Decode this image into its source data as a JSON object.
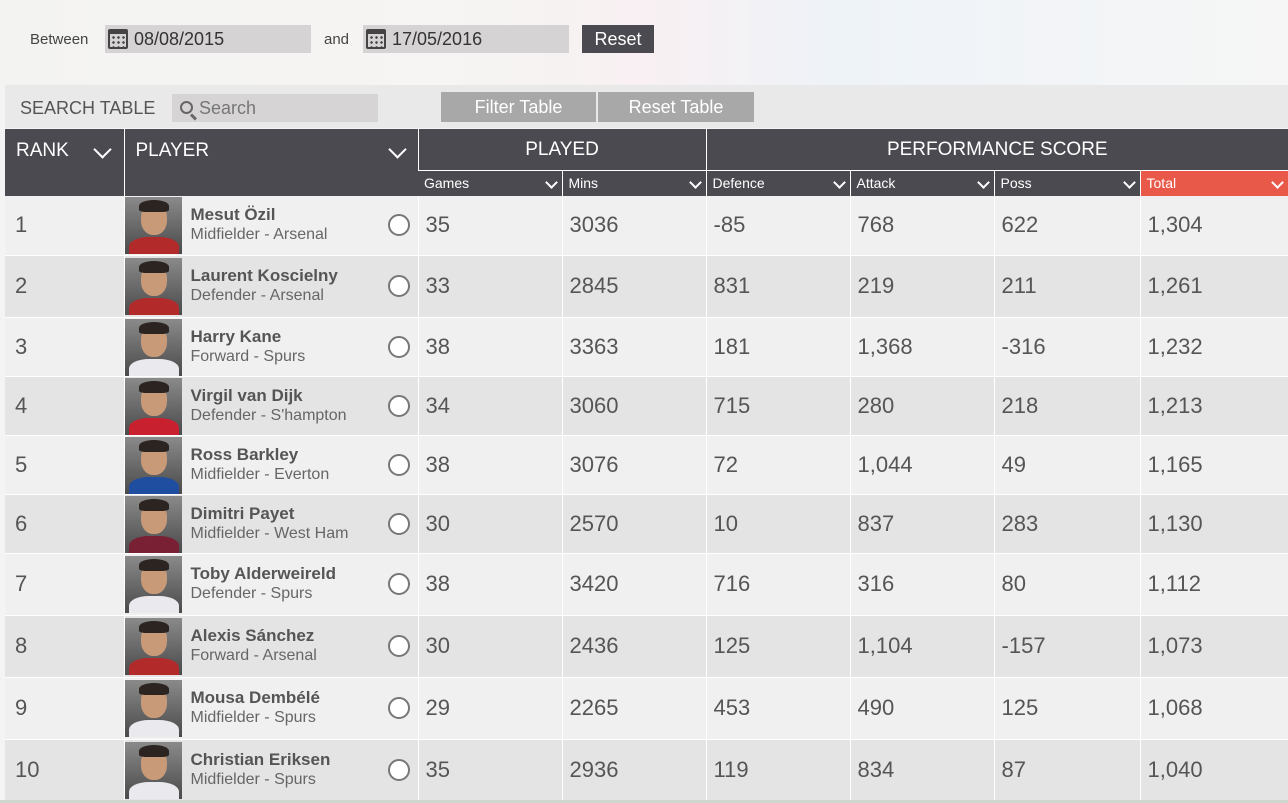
{
  "date_filter": {
    "between_label": "Between",
    "from_date": "08/08/2015",
    "and_label": "and",
    "to_date": "17/05/2016",
    "reset_label": "Reset"
  },
  "search": {
    "label": "SEARCH TABLE",
    "placeholder": "Search",
    "filter_label": "Filter Table",
    "reset_table_label": "Reset Table"
  },
  "table": {
    "headers": {
      "rank": "RANK",
      "player": "PLAYER",
      "played": "PLAYED",
      "performance": "PERFORMANCE SCORE",
      "games": "Games",
      "mins": "Mins",
      "defence": "Defence",
      "attack": "Attack",
      "poss": "Poss",
      "total": "Total"
    },
    "colors": {
      "header_bg": "#4b4a51",
      "active_sort": "#e8594a"
    },
    "rows": [
      {
        "rank": "1",
        "name": "Mesut Özil",
        "role": "Midfielder - Arsenal",
        "games": "35",
        "mins": "3036",
        "defence": "-85",
        "attack": "768",
        "poss": "622",
        "total": "1,304"
      },
      {
        "rank": "2",
        "name": "Laurent Koscielny",
        "role": "Defender - Arsenal",
        "games": "33",
        "mins": "2845",
        "defence": "831",
        "attack": "219",
        "poss": "211",
        "total": "1,261"
      },
      {
        "rank": "3",
        "name": "Harry Kane",
        "role": "Forward - Spurs",
        "games": "38",
        "mins": "3363",
        "defence": "181",
        "attack": "1,368",
        "poss": "-316",
        "total": "1,232"
      },
      {
        "rank": "4",
        "name": "Virgil van Dijk",
        "role": "Defender - S'hampton",
        "games": "34",
        "mins": "3060",
        "defence": "715",
        "attack": "280",
        "poss": "218",
        "total": "1,213"
      },
      {
        "rank": "5",
        "name": "Ross Barkley",
        "role": "Midfielder - Everton",
        "games": "38",
        "mins": "3076",
        "defence": "72",
        "attack": "1,044",
        "poss": "49",
        "total": "1,165"
      },
      {
        "rank": "6",
        "name": "Dimitri Payet",
        "role": "Midfielder - West Ham",
        "games": "30",
        "mins": "2570",
        "defence": "10",
        "attack": "837",
        "poss": "283",
        "total": "1,130"
      },
      {
        "rank": "7",
        "name": "Toby Alderweireld",
        "role": "Defender - Spurs",
        "games": "38",
        "mins": "3420",
        "defence": "716",
        "attack": "316",
        "poss": "80",
        "total": "1,112"
      },
      {
        "rank": "8",
        "name": "Alexis Sánchez",
        "role": "Forward - Arsenal",
        "games": "30",
        "mins": "2436",
        "defence": "125",
        "attack": "1,104",
        "poss": "-157",
        "total": "1,073"
      },
      {
        "rank": "9",
        "name": "Mousa Dembélé",
        "role": "Midfielder - Spurs",
        "games": "29",
        "mins": "2265",
        "defence": "453",
        "attack": "490",
        "poss": "125",
        "total": "1,068"
      },
      {
        "rank": "10",
        "name": "Christian Eriksen",
        "role": "Midfielder - Spurs",
        "games": "35",
        "mins": "2936",
        "defence": "119",
        "attack": "834",
        "poss": "87",
        "total": "1,040"
      }
    ]
  }
}
